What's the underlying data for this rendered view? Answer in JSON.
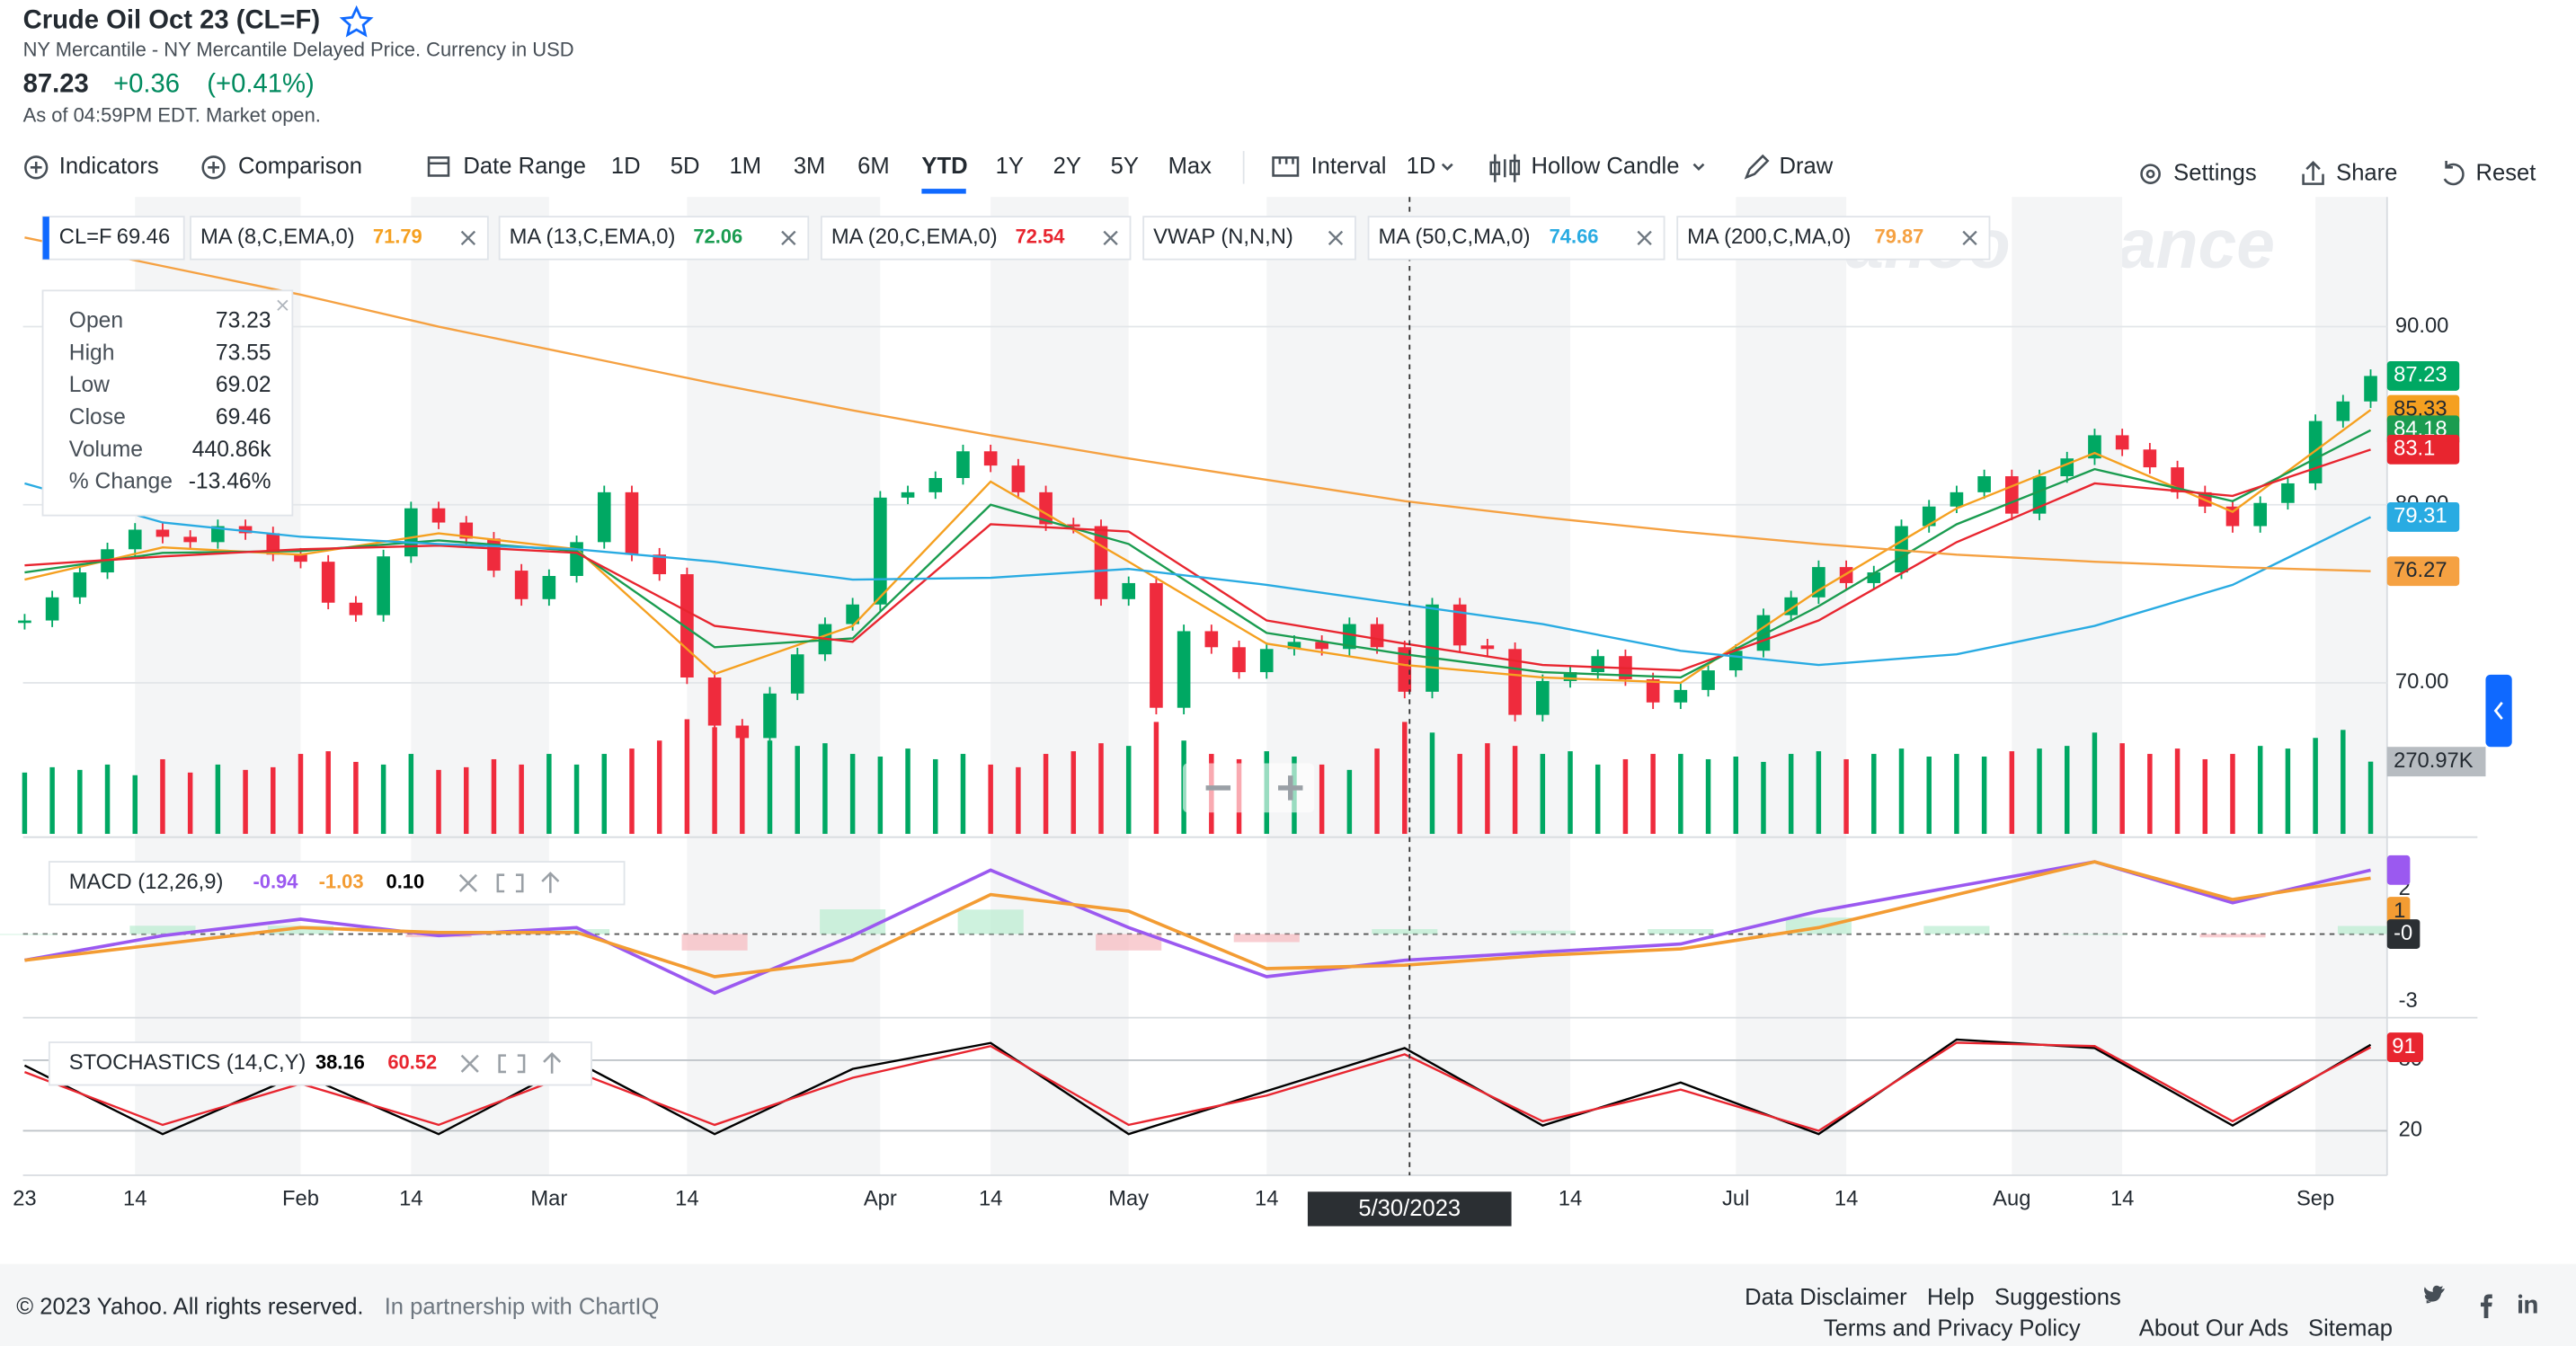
{
  "header": {
    "title": "Crude Oil Oct 23 (CL=F)",
    "exchange": "NY Mercantile - NY Mercantile Delayed Price. Currency in USD",
    "price": "87.23",
    "change": "+0.36",
    "change_percent": "(+0.41%)",
    "as_of": "As of 04:59PM EDT. Market open."
  },
  "toolbar": {
    "indicators": "Indicators",
    "comparison": "Comparison",
    "date_range": "Date Range",
    "ranges": [
      "1D",
      "5D",
      "1M",
      "3M",
      "6M",
      "YTD",
      "1Y",
      "2Y",
      "5Y",
      "Max"
    ],
    "interval": "Interval",
    "interval_value": "1D",
    "chart_style": "Hollow Candle",
    "draw": "Draw",
    "settings": "Settings",
    "share": "Share",
    "reset": "Reset"
  },
  "watermark": "yahoo!finance",
  "tooltip": {
    "rows": [
      {
        "label": "Open",
        "value": "73.23"
      },
      {
        "label": "High",
        "value": "73.55"
      },
      {
        "label": "Low",
        "value": "69.02"
      },
      {
        "label": "Close",
        "value": "69.46"
      },
      {
        "label": "Volume",
        "value": "440.86k"
      },
      {
        "label": "% Change",
        "value": "-13.46%"
      }
    ]
  },
  "chart_data": {
    "type": "candlestick",
    "symbol": "CL=F",
    "symbol_value": "69.46",
    "crosshair_date": "5/30/2023",
    "up_color": "#00a863",
    "down_color": "#ef2b3d",
    "categories": [
      "23",
      null,
      null,
      null,
      "14",
      null,
      null,
      null,
      null,
      null,
      "Feb",
      null,
      null,
      null,
      "14",
      null,
      null,
      null,
      null,
      "Mar",
      null,
      null,
      null,
      null,
      "14",
      null,
      null,
      null,
      null,
      null,
      null,
      "Apr",
      null,
      null,
      null,
      "14",
      null,
      null,
      null,
      null,
      "May",
      null,
      null,
      null,
      null,
      "14",
      null,
      null,
      null,
      null,
      null,
      null,
      null,
      null,
      null,
      null,
      "14",
      null,
      null,
      null,
      null,
      null,
      "Jul",
      null,
      null,
      null,
      "14",
      null,
      null,
      null,
      null,
      null,
      "Aug",
      null,
      null,
      null,
      "14",
      null,
      null,
      null,
      null,
      null,
      null,
      "Sep",
      null,
      null
    ],
    "closes": [
      73.5,
      74.8,
      76.2,
      77.5,
      78.6,
      78.2,
      77.9,
      78.8,
      78.4,
      77.2,
      76.8,
      74.5,
      73.8,
      77.1,
      79.8,
      79.0,
      78.1,
      76.3,
      74.7,
      76.0,
      77.9,
      80.7,
      77.2,
      76.1,
      70.3,
      67.6,
      66.9,
      69.4,
      71.6,
      73.3,
      74.4,
      80.4,
      80.7,
      81.5,
      83.0,
      82.2,
      80.7,
      78.9,
      78.8,
      74.7,
      75.6,
      68.6,
      72.9,
      72.0,
      70.6,
      71.9,
      72.3,
      71.9,
      73.3,
      72.0,
      69.5,
      74.4,
      72.1,
      71.9,
      68.2,
      70.1,
      70.6,
      71.5,
      70.2,
      68.9,
      69.6,
      70.7,
      71.8,
      73.8,
      74.8,
      76.5,
      75.6,
      76.2,
      78.8,
      79.9,
      80.7,
      81.6,
      79.5,
      81.6,
      82.6,
      83.9,
      83.1,
      82.1,
      80.7,
      79.9,
      78.8,
      80.1,
      81.2,
      84.7,
      85.8,
      87.23
    ],
    "ylim": [
      61.52,
      97.28
    ],
    "yticks": [
      {
        "value": 70,
        "label": "70.00"
      },
      {
        "value": 80,
        "label": "80.00"
      },
      {
        "value": 90,
        "label": "90.00"
      }
    ],
    "price_badge": 87.23,
    "volumes": [
      230,
      250,
      240,
      260,
      220,
      280,
      230,
      260,
      240,
      250,
      300,
      310,
      270,
      260,
      300,
      240,
      250,
      280,
      260,
      300,
      260,
      300,
      320,
      350,
      430,
      400,
      380,
      350,
      330,
      340,
      300,
      290,
      320,
      280,
      300,
      260,
      250,
      300,
      310,
      340,
      330,
      420,
      350,
      300,
      280,
      310,
      290,
      260,
      240,
      320,
      420,
      380,
      300,
      340,
      330,
      300,
      310,
      260,
      280,
      300,
      300,
      280,
      290,
      270,
      300,
      310,
      280,
      300,
      320,
      290,
      300,
      290,
      310,
      320,
      330,
      380,
      340,
      300,
      320,
      280,
      300,
      330,
      320,
      360,
      390,
      270.97
    ],
    "volume_lim": [
      0,
      739
    ],
    "volume_badge": "270.97K",
    "overlays": [
      {
        "name": "MA (8,C,EMA,0)",
        "legend_value": 71.79,
        "color": "#f5a020",
        "badge": 85.33,
        "values": [
          75.8,
          77.6,
          77.2,
          78.4,
          77.5,
          70.5,
          73.2,
          81.3,
          76.8,
          72.2,
          71.0,
          70.3,
          70.0,
          75.2,
          79.8,
          82.9,
          79.6,
          85.33
        ]
      },
      {
        "name": "MA (13,C,EMA,0)",
        "legend_value": 72.06,
        "color": "#1a9c50",
        "badge": 84.18,
        "values": [
          76.2,
          77.3,
          77.4,
          78.0,
          77.4,
          72.0,
          72.5,
          80.0,
          77.8,
          72.8,
          71.6,
          70.6,
          70.3,
          74.3,
          78.9,
          82.0,
          80.2,
          84.18
        ]
      },
      {
        "name": "MA (20,C,EMA,0)",
        "legend_value": 72.54,
        "color": "#e8252f",
        "badge": 83.1,
        "values": [
          76.6,
          77.1,
          77.5,
          77.7,
          77.3,
          73.2,
          72.3,
          78.9,
          78.5,
          73.5,
          72.2,
          71.0,
          70.7,
          73.5,
          77.9,
          81.2,
          80.5,
          83.1
        ]
      },
      {
        "name": "VWAP (N,N,N)"
      },
      {
        "name": "MA (50,C,MA,0)",
        "legend_value": 74.66,
        "color": "#29abe2",
        "badge": 79.31,
        "values": [
          81.2,
          79.0,
          78.2,
          77.8,
          77.5,
          76.8,
          75.8,
          75.9,
          76.4,
          75.5,
          74.4,
          73.3,
          71.8,
          71.0,
          71.6,
          73.2,
          75.5,
          79.31
        ]
      },
      {
        "name": "MA (200,C,MA,0)",
        "legend_value": 79.87,
        "color": "#f5a142",
        "badge": 76.27,
        "values": [
          95.0,
          93.4,
          91.8,
          90.0,
          88.4,
          86.8,
          85.3,
          83.9,
          82.6,
          81.4,
          80.2,
          79.3,
          78.5,
          77.8,
          77.2,
          76.8,
          76.5,
          76.27
        ]
      }
    ],
    "macd": {
      "name": "MACD (12,26,9)",
      "ylim": [
        -3.58,
        4.17
      ],
      "yticks": [
        -3,
        2
      ],
      "series": [
        {
          "legend_value": "-0.94",
          "color": "#9b59f0",
          "values": [
            -1.17,
            -0.07,
            0.66,
            -0.07,
            0.29,
            -2.63,
            -0.07,
            2.85,
            0.29,
            -1.9,
            -1.17,
            -0.8,
            -0.44,
            1.02,
            2.12,
            3.22,
            1.39,
            2.85
          ]
        },
        {
          "legend_value": "-1.03",
          "color": "#f39c33",
          "badge": 1,
          "values": [
            -1.17,
            -0.44,
            0.29,
            0.07,
            0.07,
            -1.9,
            -1.17,
            1.76,
            1.02,
            -1.54,
            -1.39,
            -0.95,
            -0.66,
            0.29,
            1.76,
            3.22,
            1.54,
            2.49
          ]
        }
      ],
      "histogram": {
        "legend_value": "0.10",
        "up_color": "#b9ecd0",
        "down_color": "#f7b9bf",
        "values": [
          0,
          0.37,
          0.37,
          -0.14,
          0.22,
          -0.73,
          1.1,
          1.09,
          -0.73,
          -0.36,
          0.22,
          0.15,
          0.22,
          0.73,
          0.36,
          0,
          -0.15,
          0.36
        ]
      },
      "zero_badge": {
        "value": 0,
        "label": "-0"
      }
    },
    "stochastics": {
      "name": "STOCHASTICS (14,C,Y)",
      "ylim": [
        -15.1,
        107.8
      ],
      "yticks": [
        20,
        80
      ],
      "badge": 91,
      "series": [
        {
          "legend_value": "38.16",
          "color": "#000000",
          "values": [
            75.6,
            17.1,
            68.3,
            17.1,
            78.6,
            17.1,
            72.6,
            94.7,
            17.1,
            53.7,
            90.3,
            24.4,
            61.0,
            17.1,
            97.6,
            90.3,
            24.4,
            93.2
          ]
        },
        {
          "legend_value": "60.52",
          "color": "#e8252f",
          "values": [
            70,
            25,
            60,
            25,
            70,
            25,
            65,
            92,
            25,
            50,
            85,
            28,
            55,
            20,
            95,
            92,
            28,
            91
          ]
        }
      ]
    }
  },
  "footer": {
    "copyright": "© 2023 Yahoo. All rights reserved.",
    "partnership": "In partnership with ChartIQ",
    "links": [
      "Data Disclaimer",
      "Help",
      "Suggestions",
      "Terms and Privacy Policy",
      "About Our Ads",
      "Sitemap"
    ]
  }
}
